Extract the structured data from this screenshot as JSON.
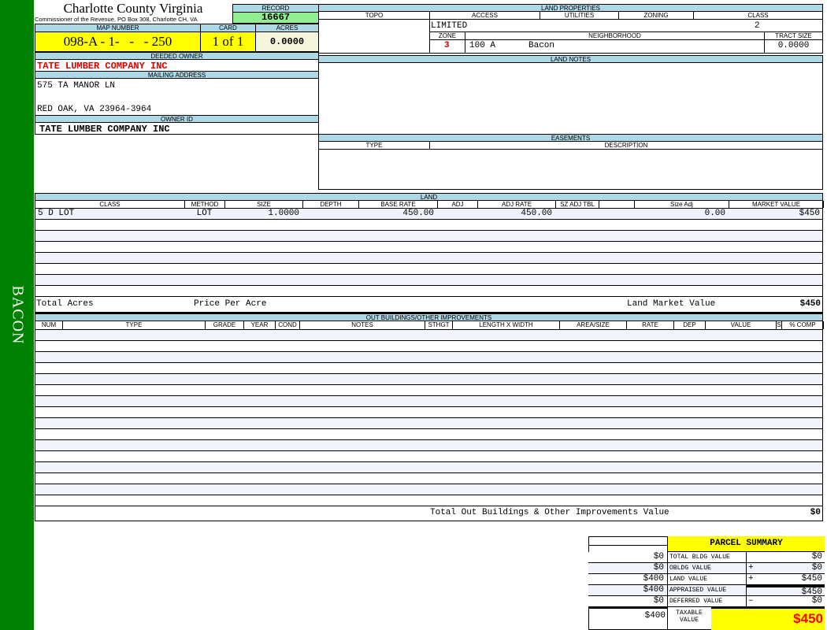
{
  "sidebar": {
    "label": "BACON",
    "color": "#008000"
  },
  "header": {
    "county": "Charlotte County Virginia",
    "office": "Commissioner of the Revenue, PO Box 308, Charlotte CH, VA"
  },
  "record": {
    "label": "RECORD",
    "value": "16667"
  },
  "map": {
    "map_label": "MAP NUMBER",
    "map_value": "098-A - 1-   -   - 250",
    "card_label": "CARD",
    "card_value": "1 of 1",
    "acres_label": "ACRES",
    "acres_value": "0.0000"
  },
  "owner": {
    "deeded_label": "DEEDED OWNER",
    "deeded_value": "TATE LUMBER COMPANY INC",
    "mailing_label": "MAILING ADDRESS",
    "address1": "575 TA MANOR LN",
    "address2": "RED OAK, VA 23964-3964",
    "owner_id_label": "OWNER ID",
    "owner_id_value": "TATE LUMBER COMPANY INC"
  },
  "land_properties": {
    "title": "LAND PROPERTIES",
    "topo": "TOPO",
    "access": "ACCESS",
    "utilities": "UTILITIES",
    "zoning": "ZONING",
    "class": "CLASS",
    "access_value": "LIMITED",
    "class_value": "2",
    "zone_label": "ZONE",
    "neighborhood_label": "NEIGHBORHOOD",
    "tract_label": "TRACT SIZE",
    "zone_value": "3",
    "neighborhood_code": "100 A",
    "neighborhood_name": "Bacon",
    "tract_value": "0.0000"
  },
  "land_notes": {
    "title": "LAND NOTES"
  },
  "easements": {
    "title": "EASEMENTS",
    "type": "TYPE",
    "description": "DESCRIPTION"
  },
  "land": {
    "title": "LAND",
    "columns": [
      "CLASS",
      "METHOD",
      "SIZE",
      "DEPTH",
      "BASE RATE",
      "ADJ",
      "ADJ RATE",
      "SZ ADJ TBL",
      "",
      "Size Adj",
      "MARKET VALUE"
    ],
    "rows": [
      [
        "5 D LOT",
        "LOT",
        "1.0000",
        "",
        "450.00",
        "",
        "450.00",
        "",
        "",
        "0.00",
        "$450"
      ]
    ],
    "total_acres_label": "Total Acres",
    "price_per_acre_label": "Price Per Acre",
    "market_label": "Land Market Value",
    "market_value": "$450"
  },
  "outbuildings": {
    "title": "OUT BUILDINGS/OTHER IMPROVEMENTS",
    "columns": [
      "NUM",
      "TYPE",
      "GRADE",
      "YEAR",
      "COND",
      "NOTES",
      "STHGT",
      "LENGTH X WIDTH",
      "AREA/SIZE",
      "RATE",
      "DEP",
      "VALUE",
      "S",
      "% COMP"
    ],
    "total_label": "Total Out Buildings & Other Improvements Value",
    "total_value": "$0"
  },
  "summary": {
    "title": "PARCEL SUMMARY",
    "rows": [
      {
        "prior": "$0",
        "label": "TOTAL BLDG VALUE",
        "op": "",
        "value": "$0"
      },
      {
        "prior": "$0",
        "label": "OBLDG VALUE",
        "op": "+",
        "value": "$0"
      },
      {
        "prior": "$400",
        "label": "LAND VALUE",
        "op": "+",
        "value": "$450"
      },
      {
        "prior": "$400",
        "label": "APPRAISED VALUE",
        "op": "",
        "value": "$450"
      },
      {
        "prior": "$0",
        "label": "DEFERRED VALUE",
        "op": "–",
        "value": "$0"
      }
    ],
    "taxable_prior": "$400",
    "taxable_label": "TAXABLE VALUE",
    "taxable_value": "$450"
  }
}
